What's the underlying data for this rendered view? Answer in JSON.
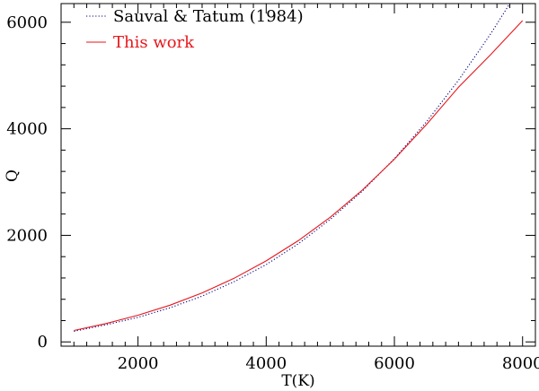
{
  "chart_data": {
    "type": "line",
    "title": "",
    "xlabel": "T(K)",
    "ylabel": "Q",
    "xlim": [
      800,
      8200
    ],
    "ylim": [
      -80,
      6350
    ],
    "xticks_major": [
      2000,
      4000,
      6000,
      8000
    ],
    "yticks_major": [
      0,
      2000,
      4000,
      6000
    ],
    "xticks_minor_step": 200,
    "yticks_minor_step": 400,
    "grid": false,
    "legend_position": "top-left",
    "series": [
      {
        "name": "Sauval & Tatum (1984)",
        "color": "#00007a",
        "style": "dotted",
        "x": [
          1000,
          1500,
          2000,
          2500,
          3000,
          3500,
          4000,
          4500,
          5000,
          5500,
          6000,
          6500,
          7000,
          7500,
          7800,
          8000
        ],
        "y": [
          200,
          320,
          460,
          640,
          860,
          1130,
          1450,
          1840,
          2300,
          2830,
          3440,
          4130,
          4910,
          5780,
          6350,
          6750
        ]
      },
      {
        "name": "This work",
        "color": "#e8161b",
        "style": "solid",
        "x": [
          1000,
          1500,
          2000,
          2500,
          3000,
          3500,
          4000,
          4500,
          5000,
          5500,
          6000,
          6500,
          7000,
          7500,
          8000
        ],
        "y": [
          215,
          345,
          500,
          690,
          920,
          1195,
          1520,
          1900,
          2340,
          2850,
          3430,
          4080,
          4780,
          5390,
          6030
        ]
      }
    ]
  }
}
